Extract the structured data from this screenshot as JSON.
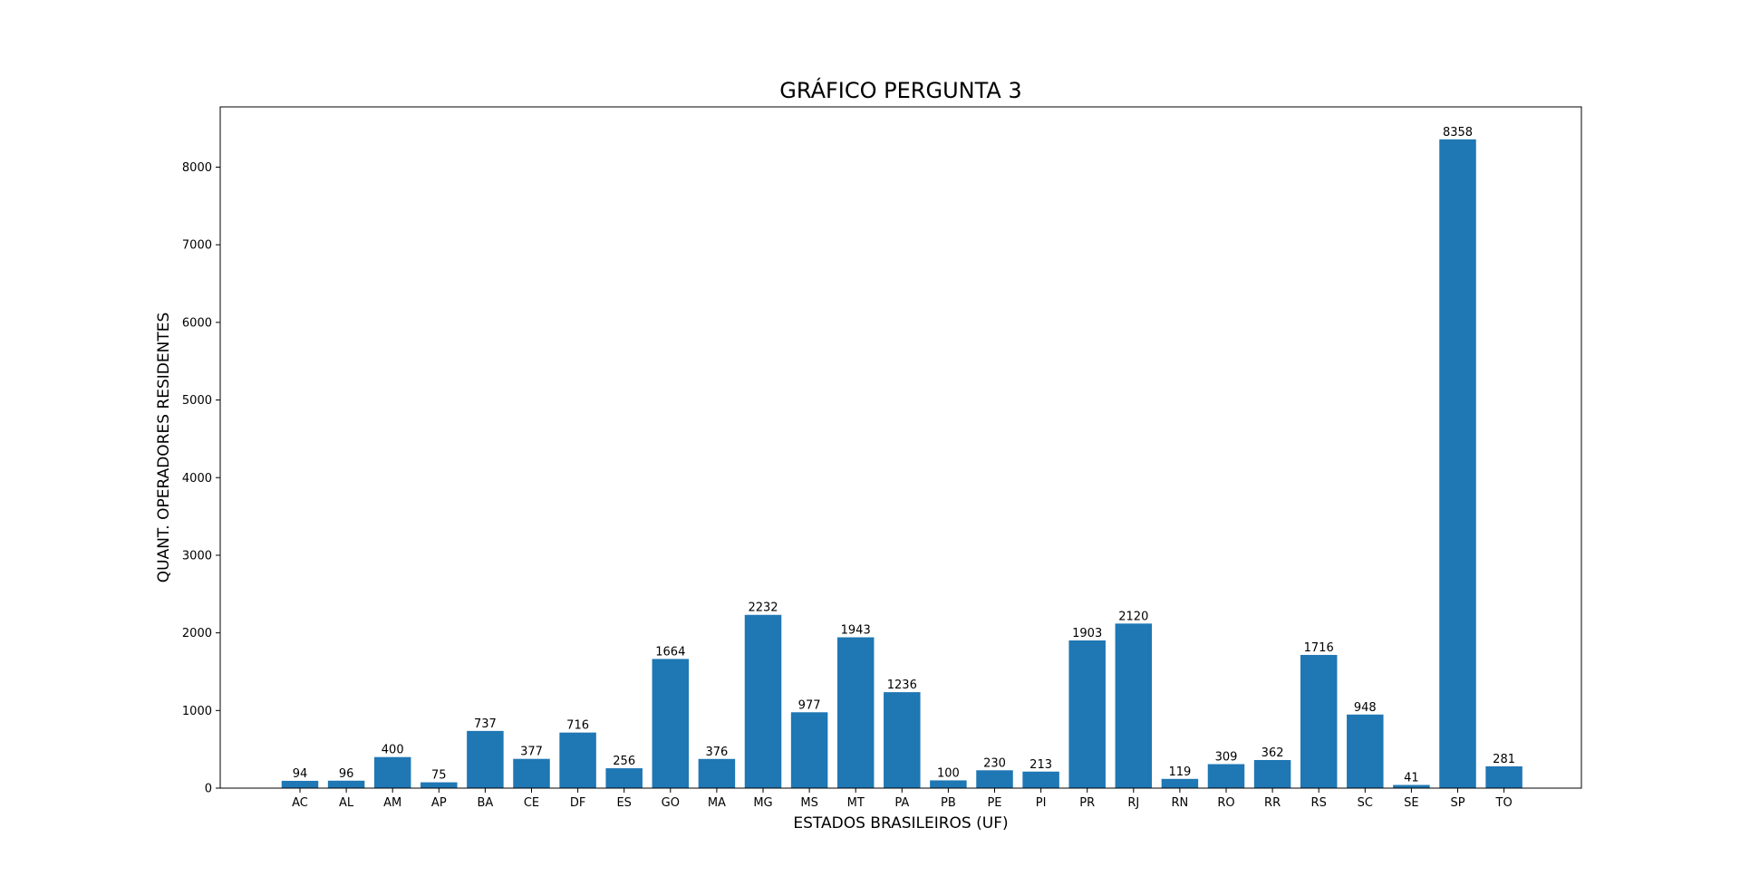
{
  "chart_data": {
    "type": "bar",
    "title": "GRÁFICO PERGUNTA 3",
    "xlabel": "ESTADOS BRASILEIROS (UF)",
    "ylabel": "QUANT. OPERADORES RESIDENTES",
    "categories": [
      "AC",
      "AL",
      "AM",
      "AP",
      "BA",
      "CE",
      "DF",
      "ES",
      "GO",
      "MA",
      "MG",
      "MS",
      "MT",
      "PA",
      "PB",
      "PE",
      "PI",
      "PR",
      "RJ",
      "RN",
      "RO",
      "RR",
      "RS",
      "SC",
      "SE",
      "SP",
      "TO"
    ],
    "values": [
      94,
      96,
      400,
      75,
      737,
      377,
      716,
      256,
      1664,
      376,
      2232,
      977,
      1943,
      1236,
      100,
      230,
      213,
      1903,
      2120,
      119,
      309,
      362,
      1716,
      948,
      41,
      8358,
      281
    ],
    "ylim": [
      0,
      8776
    ],
    "yticks": [
      0,
      1000,
      2000,
      3000,
      4000,
      5000,
      6000,
      7000,
      8000
    ],
    "bar_color": "#1f77b4",
    "grid": false,
    "data_labels": true
  }
}
